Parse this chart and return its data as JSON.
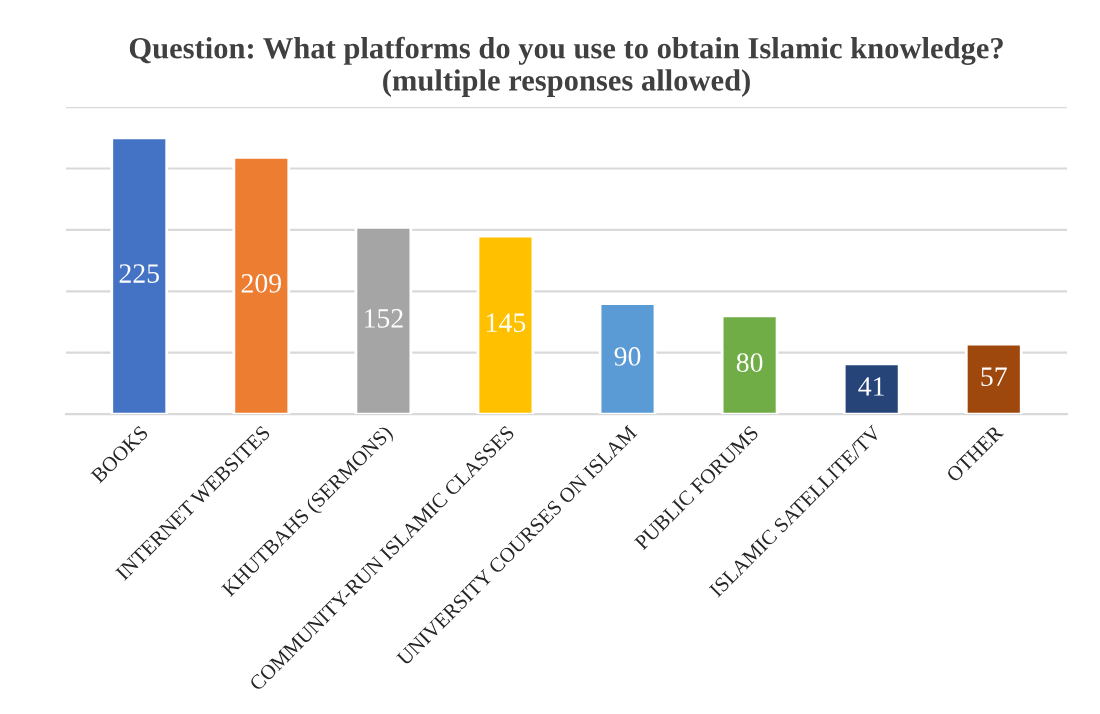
{
  "chart_data": {
    "type": "bar",
    "title": "Question: What platforms do you use to obtain Islamic knowledge?\n(multiple responses allowed)",
    "categories": [
      "BOOKS",
      "INTERNET WEBSITES",
      "KHUTBAHS (SERMONS)",
      "COMMUNITY-RUN ISLAMIC CLASSES",
      "UNIVERSITY COURSES ON ISLAM",
      "PUBLIC FORUMS",
      "ISLAMIC SATELLITE/TV",
      "OTHER"
    ],
    "values": [
      225,
      209,
      152,
      145,
      90,
      80,
      41,
      57
    ],
    "colors": [
      "#4472c4",
      "#ed7d31",
      "#a5a5a5",
      "#ffc000",
      "#5b9bd5",
      "#70ad47",
      "#264478",
      "#9e480e"
    ],
    "ylim": [
      0,
      250
    ],
    "yticks": [
      {
        "value": 0,
        "label": null
      },
      {
        "value": 50,
        "label": null
      },
      {
        "value": 100,
        "label": null
      },
      {
        "value": 150,
        "label": null
      },
      {
        "value": 200,
        "label": null
      },
      {
        "value": 250,
        "label": null
      }
    ],
    "grid": "y",
    "tick_labels": "x",
    "data_labels": true
  }
}
